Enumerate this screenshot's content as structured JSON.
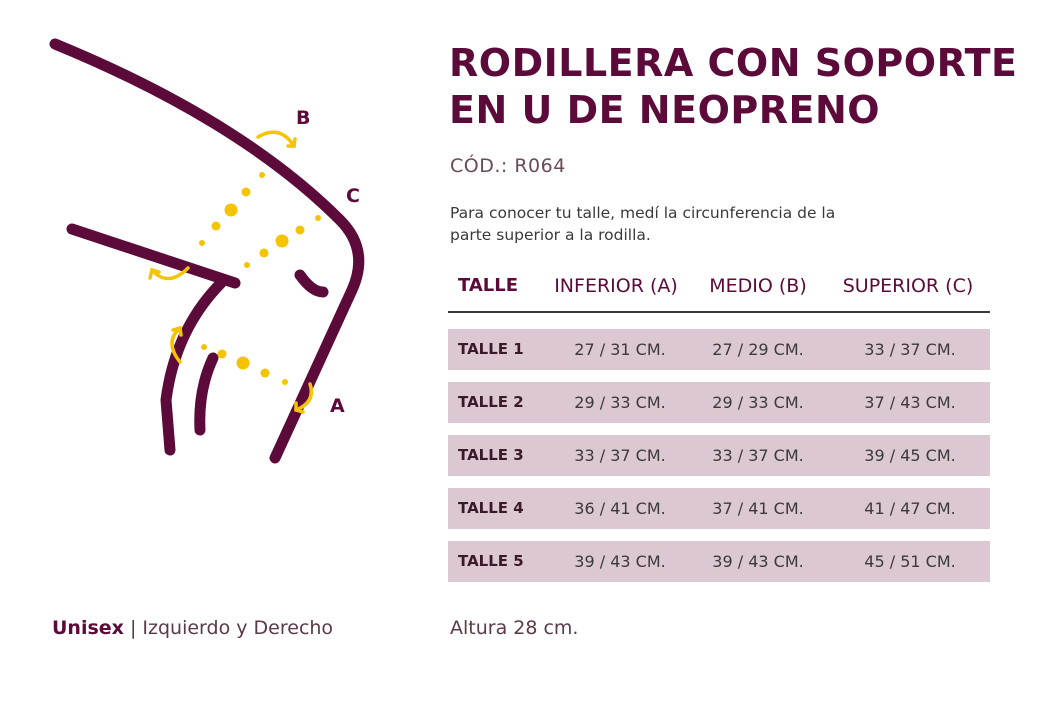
{
  "colors": {
    "brand": "#5c0a3a",
    "accent": "#f5c400",
    "row_bg": "#dcc8d3"
  },
  "illustration": {
    "icon": "knee-measurement-diagram-icon",
    "labels": {
      "a": "A",
      "b": "B",
      "c": "C"
    }
  },
  "product": {
    "title_line1": "RODILLERA CON SOPORTE",
    "title_line2": "EN U DE NEOPRENO",
    "code": "CÓD.: R064",
    "description_line1": "Para conocer tu talle, medí la circunferencia de la",
    "description_line2": "parte superior a la rodilla."
  },
  "table": {
    "headers": [
      "TALLE",
      "INFERIOR (A)",
      "MEDIO (B)",
      "SUPERIOR (C)"
    ],
    "rows": [
      {
        "size": "TALLE 1",
        "inferior": "27 / 31 CM.",
        "medio": "27 / 29 CM.",
        "superior": "33 / 37 CM."
      },
      {
        "size": "TALLE 2",
        "inferior": "29 / 33 CM.",
        "medio": "29 / 33 CM.",
        "superior": "37 / 43 CM."
      },
      {
        "size": "TALLE 3",
        "inferior": "33 / 37 CM.",
        "medio": "33 / 37 CM.",
        "superior": "39 / 45 CM."
      },
      {
        "size": "TALLE 4",
        "inferior": "36 / 41 CM.",
        "medio": "37 / 41 CM.",
        "superior": "41 / 47 CM."
      },
      {
        "size": "TALLE 5",
        "inferior": "39 / 43 CM.",
        "medio": "39 / 43 CM.",
        "superior": "45 / 51 CM."
      }
    ]
  },
  "footer": {
    "unisex": "Unisex",
    "separator": " | ",
    "sides": "Izquierdo y Derecho",
    "height": "Altura 28 cm."
  }
}
